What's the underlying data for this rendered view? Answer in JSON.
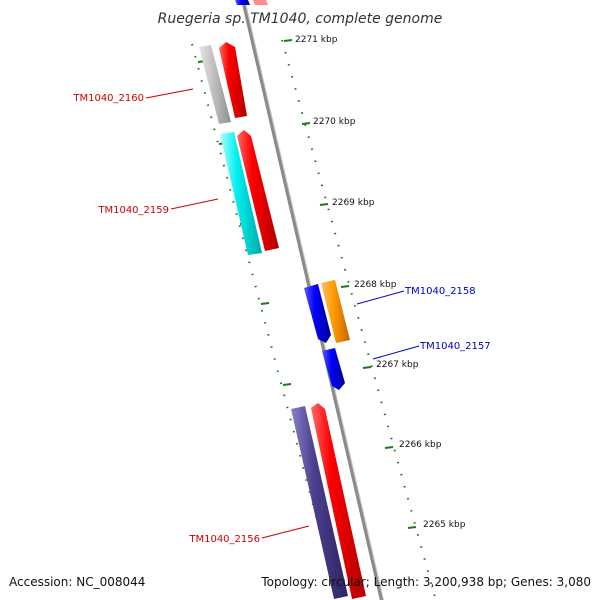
{
  "title": "Ruegeria sp. TM1040, complete genome",
  "footer": {
    "accession": "Accession: NC_008044",
    "topology": "Topology: circular; Length: 3,200,938 bp; Genes: 3,080"
  },
  "kbp_labels": [
    "2271 kbp",
    "2270 kbp",
    "2269 kbp",
    "2268 kbp",
    "2267 kbp",
    "2266 kbp",
    "2265 kbp"
  ],
  "genes": {
    "tm2160": "TM1040_2160",
    "tm2159": "TM1040_2159",
    "tm2158": "TM1040_2158",
    "tm2157": "TM1040_2157",
    "tm2156": "TM1040_2156"
  },
  "colors": {
    "backbone": "#8a8a8a",
    "forward_gene": "#ff0000",
    "gene_grey": "#c0c0c0",
    "gene_cyan": "#00ffff",
    "gene_orange": "#ff9900",
    "gene_blue": "#0000ff",
    "gene_purple": "#4b3f8f",
    "tick": "#1a7a1a",
    "label_red": "#cc0000",
    "label_blue": "#0000cc"
  }
}
